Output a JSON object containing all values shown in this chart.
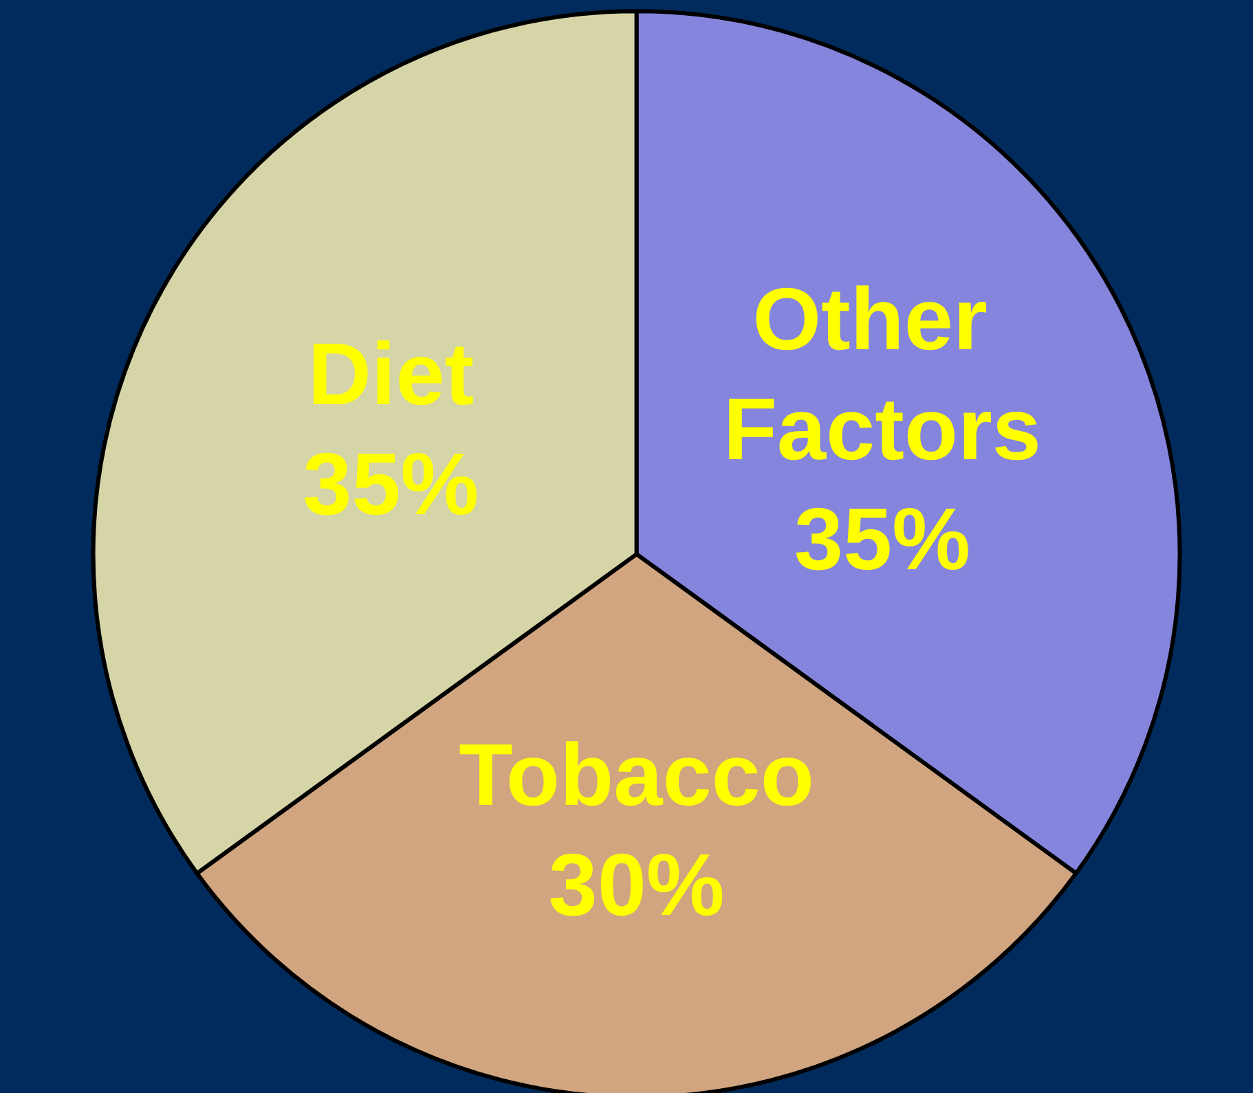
{
  "chart_data": {
    "type": "pie",
    "categories": [
      "Other Factors",
      "Tobacco",
      "Diet"
    ],
    "values": [
      35,
      30,
      35
    ],
    "value_labels": [
      "35%",
      "30%",
      "35%"
    ],
    "colors": [
      "#8585dd",
      "#d0a57f",
      "#d5d5a8"
    ]
  }
}
